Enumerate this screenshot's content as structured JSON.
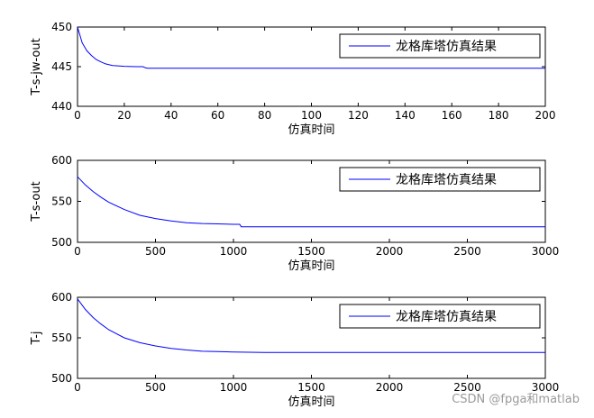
{
  "chart_data": [
    {
      "type": "line",
      "xlabel": "仿真时间",
      "ylabel": "T-s-jw-out",
      "xlim": [
        0,
        200
      ],
      "ylim": [
        440,
        450
      ],
      "xticks": [
        0,
        20,
        40,
        60,
        80,
        100,
        120,
        140,
        160,
        180,
        200
      ],
      "yticks": [
        440,
        445,
        450
      ],
      "legend_position": "top-right",
      "grid": false,
      "series": [
        {
          "name": "龙格库塔仿真结果",
          "color": "#0000ff",
          "x": [
            0,
            2,
            4,
            6,
            8,
            10,
            12,
            15,
            20,
            25,
            28,
            29,
            30,
            40,
            60,
            100,
            150,
            200
          ],
          "y": [
            450,
            448.0,
            447.0,
            446.4,
            445.9,
            445.6,
            445.35,
            445.15,
            445.05,
            445.0,
            445.0,
            444.85,
            444.8,
            444.8,
            444.8,
            444.8,
            444.8,
            444.8
          ]
        }
      ]
    },
    {
      "type": "line",
      "xlabel": "仿真时间",
      "ylabel": "T-s-out",
      "xlim": [
        0,
        3000
      ],
      "ylim": [
        500,
        600
      ],
      "xticks": [
        0,
        500,
        1000,
        1500,
        2000,
        2500,
        3000
      ],
      "yticks": [
        500,
        550,
        600
      ],
      "legend_position": "top-right",
      "grid": false,
      "series": [
        {
          "name": "龙格库塔仿真结果",
          "color": "#0000ff",
          "x": [
            0,
            50,
            100,
            150,
            200,
            300,
            400,
            500,
            600,
            700,
            800,
            900,
            1000,
            1040,
            1050,
            1500,
            2000,
            2500,
            3000
          ],
          "y": [
            580,
            570,
            562,
            555,
            549,
            540,
            533,
            529,
            526,
            524,
            523,
            522.5,
            522,
            522,
            519,
            519,
            519,
            519,
            519
          ]
        }
      ]
    },
    {
      "type": "line",
      "xlabel": "仿真时间",
      "ylabel": "T-j",
      "xlim": [
        0,
        3000
      ],
      "ylim": [
        500,
        600
      ],
      "xticks": [
        0,
        500,
        1000,
        1500,
        2000,
        2500,
        3000
      ],
      "yticks": [
        500,
        550,
        600
      ],
      "legend_position": "top-right",
      "grid": false,
      "series": [
        {
          "name": "龙格库塔仿真结果",
          "color": "#0000ff",
          "x": [
            0,
            50,
            100,
            150,
            200,
            300,
            400,
            500,
            600,
            700,
            800,
            900,
            1000,
            1200,
            1500,
            2000,
            2500,
            3000
          ],
          "y": [
            598,
            585,
            575,
            567,
            560,
            550,
            544,
            540,
            537,
            535,
            533.5,
            533,
            532.5,
            532,
            532,
            532,
            532,
            532
          ]
        }
      ]
    }
  ],
  "watermark": "CSDN @fpga和matlab"
}
